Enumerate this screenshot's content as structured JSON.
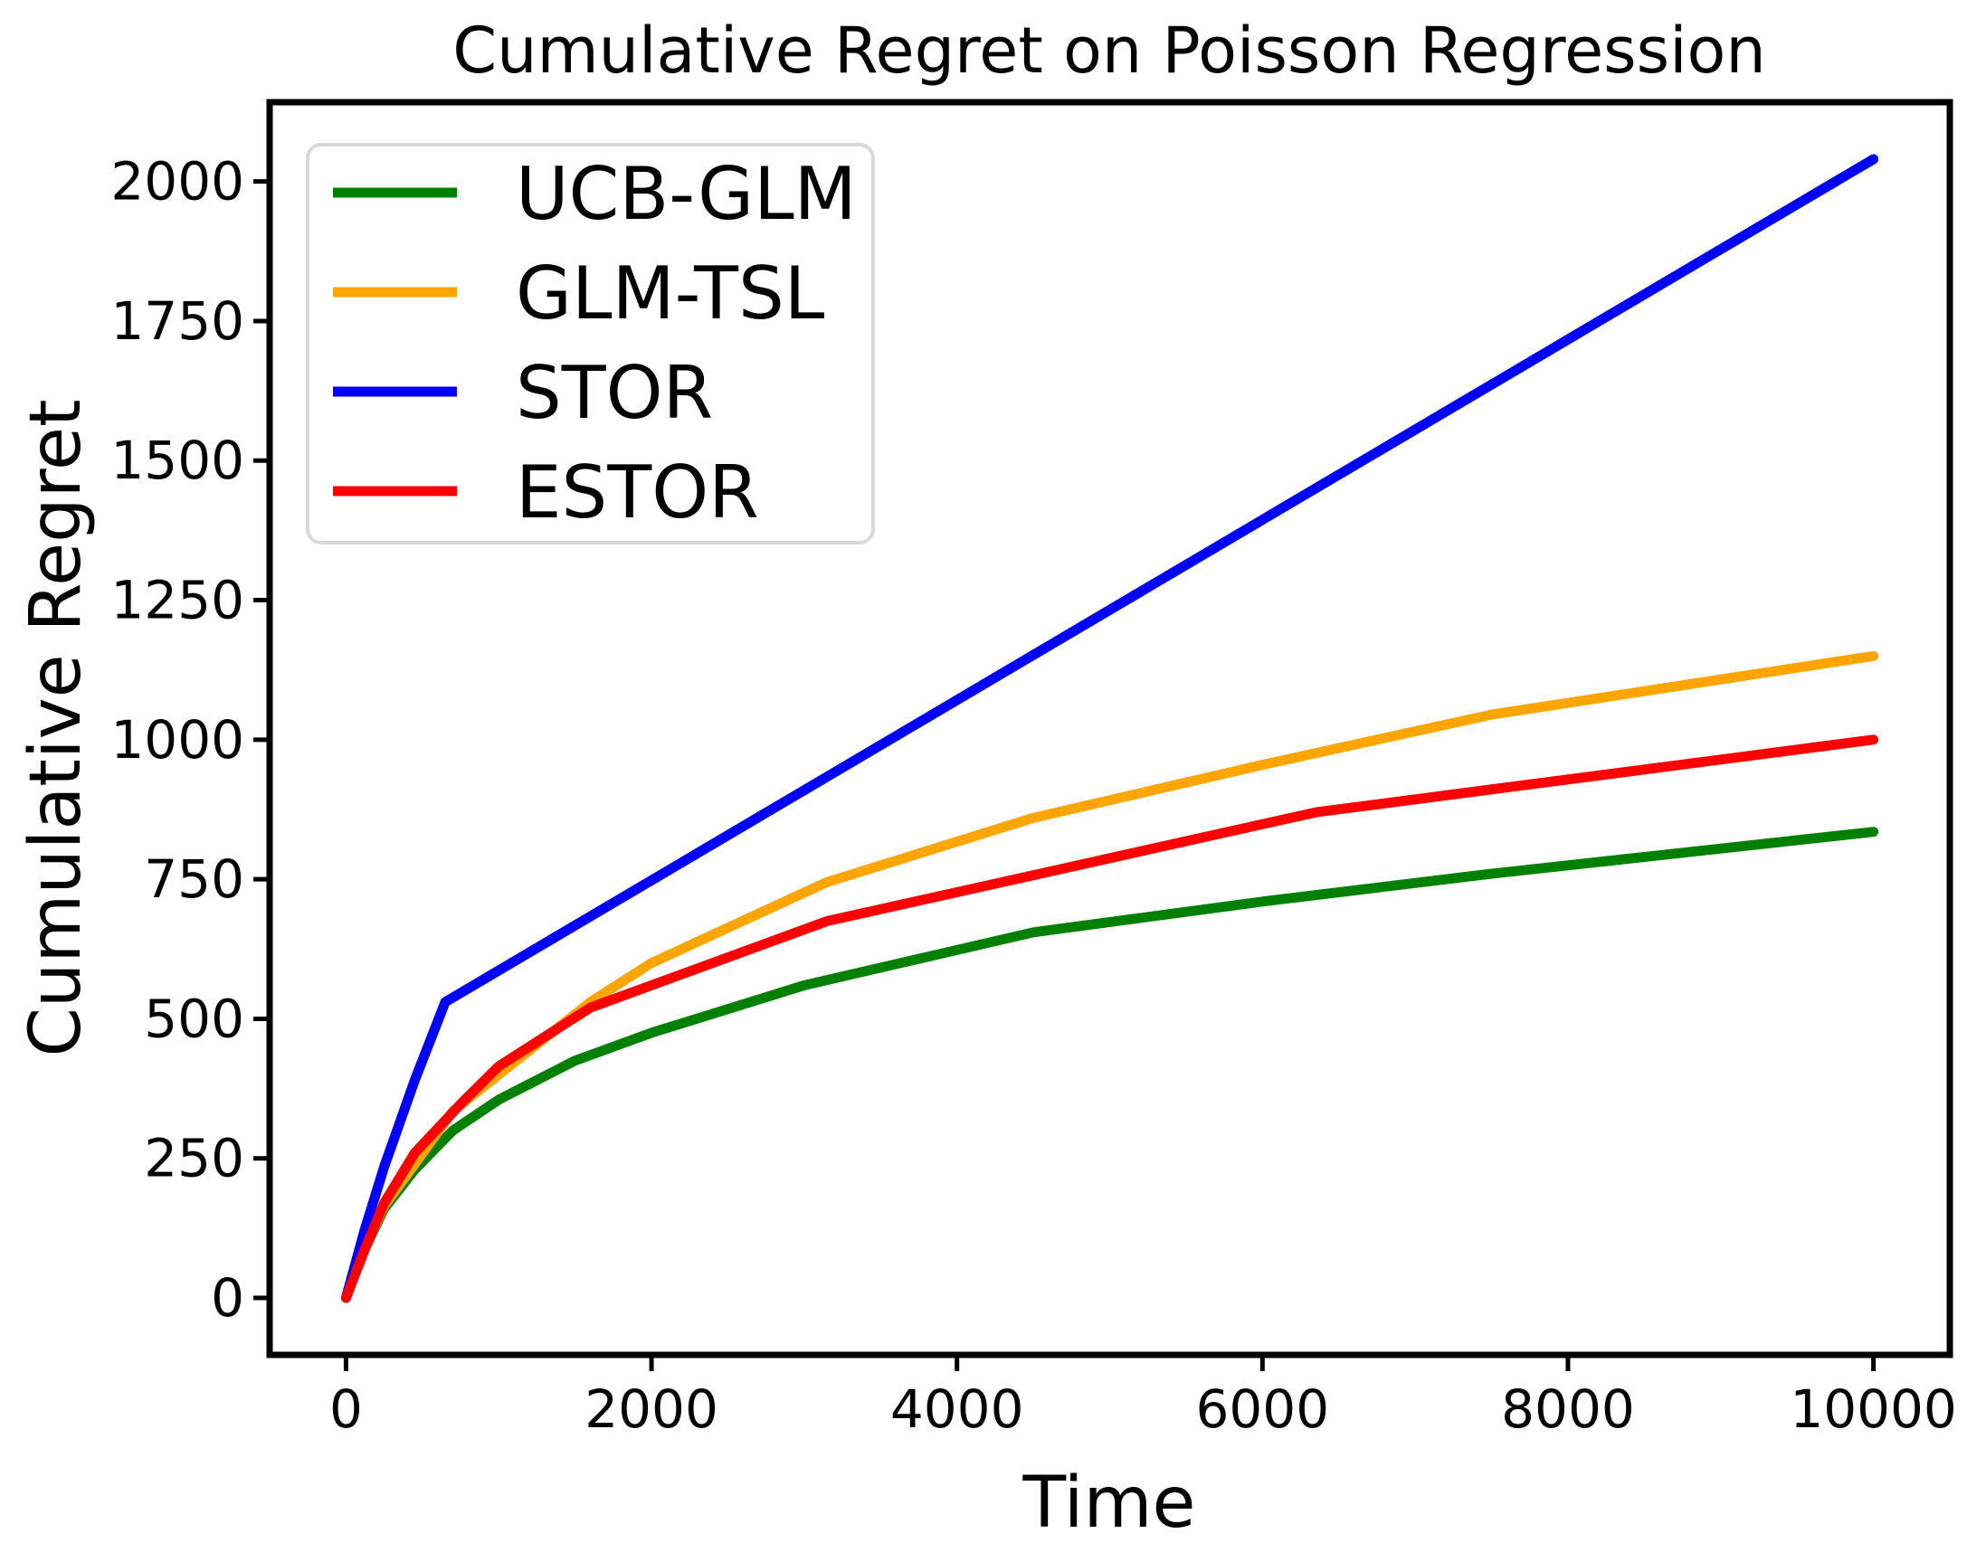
{
  "title": "Cumulative Regret on Poisson Regression",
  "chart_data": {
    "type": "line",
    "title": "Cumulative Regret on Poisson Regression",
    "xlabel": "Time",
    "ylabel": "Cumulative Regret",
    "xlim": [
      -500,
      10500
    ],
    "ylim": [
      -102,
      2142
    ],
    "xticks": [
      0,
      2000,
      4000,
      6000,
      8000,
      10000
    ],
    "yticks": [
      0,
      250,
      500,
      750,
      1000,
      1250,
      1500,
      1750,
      2000
    ],
    "grid": false,
    "legend_position": "upper-left",
    "background": "#FFFFFF",
    "axis_color": "#000000",
    "legend_border_color": "#D9D9D9",
    "series": [
      {
        "name": "UCB-GLM",
        "color": "#008000",
        "points": [
          [
            0,
            0
          ],
          [
            100,
            75
          ],
          [
            250,
            160
          ],
          [
            450,
            230
          ],
          [
            700,
            300
          ],
          [
            1000,
            355
          ],
          [
            1500,
            425
          ],
          [
            2000,
            475
          ],
          [
            3000,
            560
          ],
          [
            4500,
            655
          ],
          [
            6000,
            710
          ],
          [
            7500,
            760
          ],
          [
            10000,
            835
          ]
        ]
      },
      {
        "name": "GLM-TSL",
        "color": "#FFA500",
        "points": [
          [
            0,
            0
          ],
          [
            100,
            75
          ],
          [
            250,
            165
          ],
          [
            450,
            240
          ],
          [
            700,
            335
          ],
          [
            1000,
            400
          ],
          [
            1600,
            530
          ],
          [
            2000,
            600
          ],
          [
            3150,
            745
          ],
          [
            4500,
            860
          ],
          [
            6000,
            955
          ],
          [
            7500,
            1045
          ],
          [
            10000,
            1150
          ]
        ]
      },
      {
        "name": "STOR",
        "color": "#0000FF",
        "points": [
          [
            0,
            0
          ],
          [
            120,
            120
          ],
          [
            250,
            235
          ],
          [
            450,
            390
          ],
          [
            650,
            530
          ],
          [
            10000,
            2040
          ]
        ]
      },
      {
        "name": "ESTOR",
        "color": "#FF0000",
        "points": [
          [
            0,
            0
          ],
          [
            120,
            85
          ],
          [
            250,
            170
          ],
          [
            450,
            260
          ],
          [
            760,
            350
          ],
          [
            1000,
            415
          ],
          [
            1600,
            520
          ],
          [
            3150,
            675
          ],
          [
            6350,
            870
          ],
          [
            10000,
            1000
          ]
        ]
      }
    ]
  }
}
